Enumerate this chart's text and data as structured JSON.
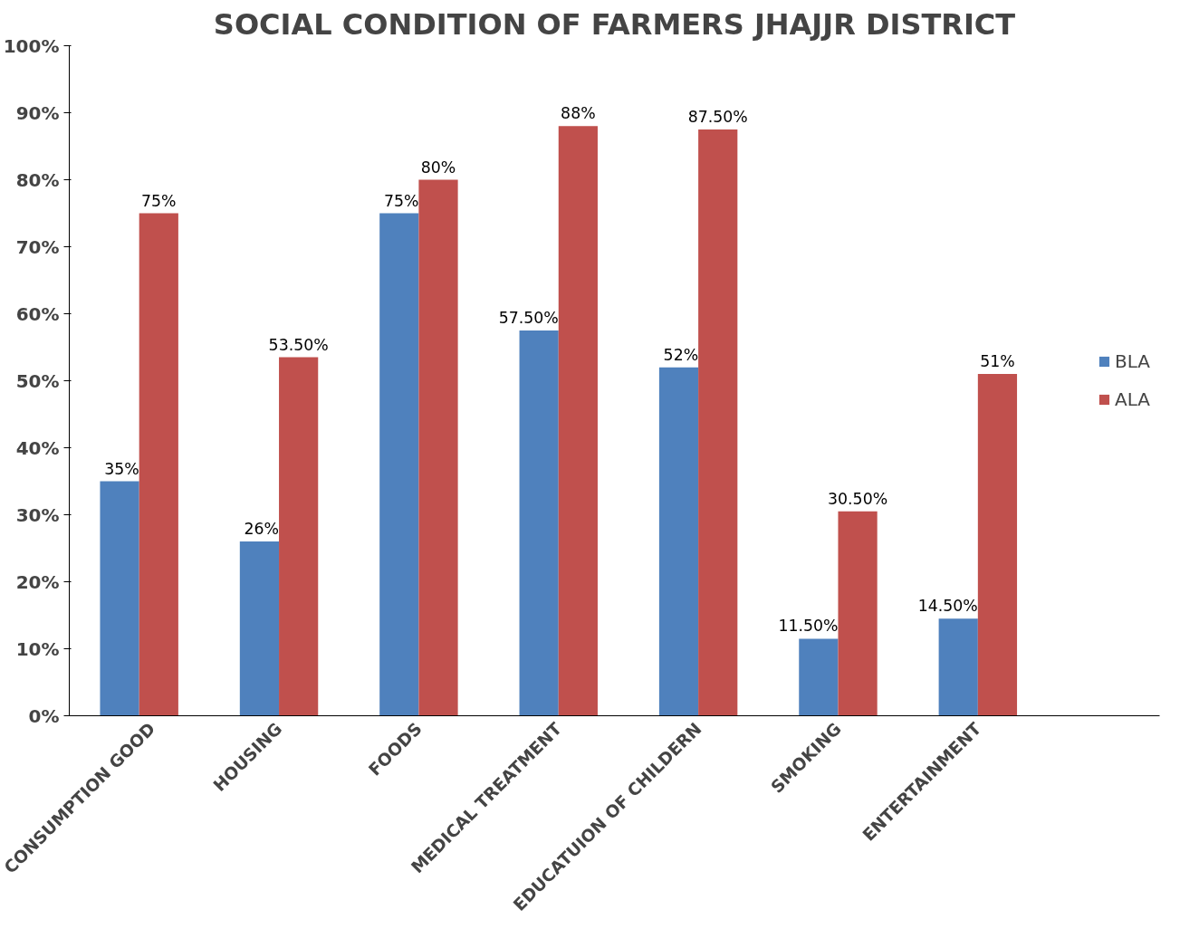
{
  "chart_data": {
    "type": "bar",
    "title": "SOCIAL CONDITION OF FARMERS JHAJJR DISTRICT",
    "categories": [
      "CONSUMPTION GOOD",
      "HOUSING",
      "FOODS",
      "MEDICAL TREATMENT",
      "EDUCATUION OF CHILDERN",
      "SMOKING",
      "ENTERTAINMENT"
    ],
    "series": [
      {
        "name": "BLA",
        "color": "#4f81bd",
        "values": [
          35,
          26,
          75,
          57.5,
          52,
          11.5,
          14.5
        ],
        "value_labels": [
          "35%",
          "26%",
          "75%",
          "57.50%",
          "52%",
          "11.50%",
          "14.50%"
        ]
      },
      {
        "name": "ALA",
        "color": "#c0504d",
        "values": [
          75,
          53.5,
          80,
          88,
          87.5,
          30.5,
          51
        ],
        "value_labels": [
          "75%",
          "53.50%",
          "80%",
          "88%",
          "87.50%",
          "30.50%",
          "51%"
        ]
      }
    ],
    "ylim": [
      0,
      100
    ],
    "yticks": [
      {
        "value": 0,
        "label": "0%"
      },
      {
        "value": 10,
        "label": "10%"
      },
      {
        "value": 20,
        "label": "20%"
      },
      {
        "value": 30,
        "label": "30%"
      },
      {
        "value": 40,
        "label": "40%"
      },
      {
        "value": 50,
        "label": "50%"
      },
      {
        "value": 60,
        "label": "60%"
      },
      {
        "value": 70,
        "label": "70%"
      },
      {
        "value": 80,
        "label": "80%"
      },
      {
        "value": 90,
        "label": "90%"
      },
      {
        "value": 100,
        "label": "100%"
      }
    ],
    "grid": false,
    "legend": "right"
  }
}
